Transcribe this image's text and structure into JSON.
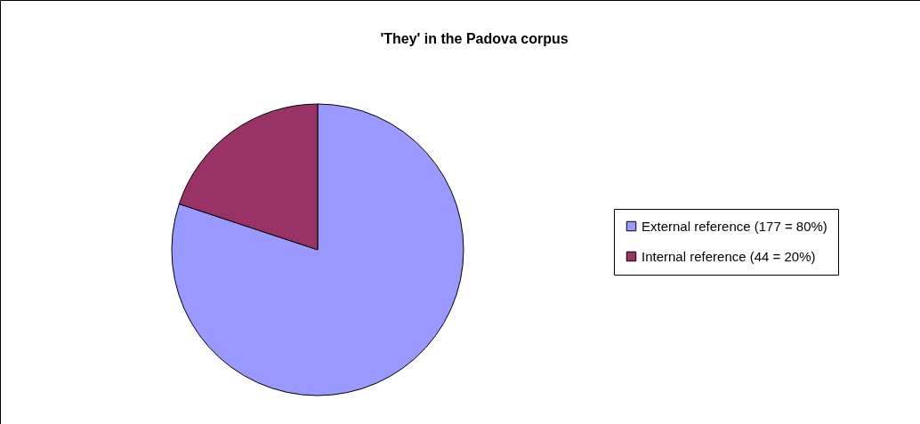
{
  "chart_data": {
    "type": "pie",
    "title": "'They' in the Padova corpus",
    "categories": [
      "External reference (177 = 80%)",
      "Internal reference (44 = 20%)"
    ],
    "values": [
      177,
      44
    ],
    "colors": [
      "#9999ff",
      "#993366"
    ],
    "legend": "right"
  }
}
